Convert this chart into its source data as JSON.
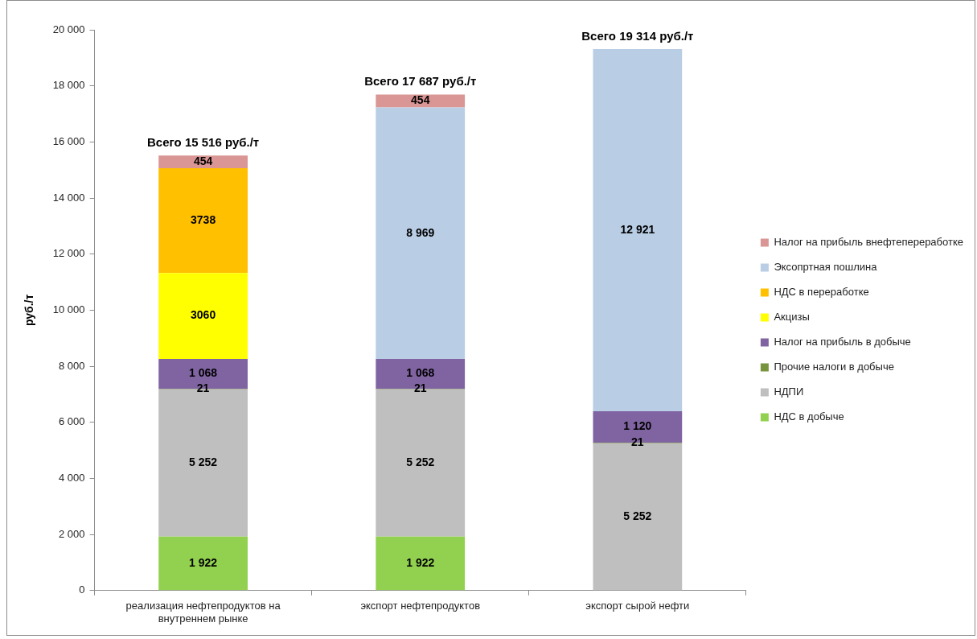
{
  "chart_data": {
    "type": "bar",
    "stacked": true,
    "ylabel": "руб./т",
    "categories": [
      "реализация нефтепродуктов на внутреннем рынке",
      "экспорт нефтепродуктов",
      "экспорт сырой нефти"
    ],
    "series": [
      {
        "name": "НДС в добыче",
        "color": "#92d050",
        "values": [
          1922,
          1922,
          null
        ],
        "value_labels": [
          "1 922",
          "1 922",
          null
        ]
      },
      {
        "name": "НДПИ",
        "color": "#bfbfbf",
        "values": [
          5252,
          5252,
          5252
        ],
        "value_labels": [
          "5 252",
          "5 252",
          "5 252"
        ]
      },
      {
        "name": "Прочие налоги в добыче",
        "color": "#77933c",
        "values": [
          21,
          21,
          21
        ],
        "value_labels": [
          "21",
          "21",
          "21"
        ]
      },
      {
        "name": "Налог на прибыль в добыче",
        "color": "#8064a2",
        "values": [
          1068,
          1068,
          1120
        ],
        "value_labels": [
          "1 068",
          "1 068",
          "1 120"
        ]
      },
      {
        "name": "Акцизы",
        "color": "#ffff00",
        "values": [
          3060,
          null,
          null
        ],
        "value_labels": [
          "3060",
          null,
          null
        ]
      },
      {
        "name": "НДС в переработке",
        "color": "#ffc000",
        "values": [
          3738,
          null,
          null
        ],
        "value_labels": [
          "3738",
          null,
          null
        ]
      },
      {
        "name": "Эксопртная пошлина",
        "color": "#b9cde5",
        "values": [
          null,
          8969,
          12921
        ],
        "value_labels": [
          null,
          "8 969",
          "12 921"
        ]
      },
      {
        "name": "Налог на прибыль внефтепереработке",
        "color": "#d99694",
        "values": [
          454,
          454,
          null
        ],
        "value_labels": [
          "454",
          "454",
          null
        ]
      }
    ],
    "totals": [
      "Всего 15 516 руб./т",
      "Всего 17 687 руб./т",
      "Всего 19 314 руб./т"
    ],
    "ylim": [
      0,
      20000
    ],
    "yticks": [
      0,
      {
        "value": 2000,
        "label": "2 000"
      },
      {
        "value": 4000,
        "label": "4 000"
      },
      {
        "value": 6000,
        "label": "6 000"
      },
      {
        "value": 8000,
        "label": "8 000"
      },
      {
        "value": 10000,
        "label": "10 000"
      },
      {
        "value": 12000,
        "label": "12 000"
      },
      {
        "value": 14000,
        "label": "14 000"
      },
      {
        "value": 16000,
        "label": "16 000"
      },
      {
        "value": 18000,
        "label": "18 000"
      },
      {
        "value": 20000,
        "label": "20 000"
      }
    ],
    "legend": "right"
  }
}
